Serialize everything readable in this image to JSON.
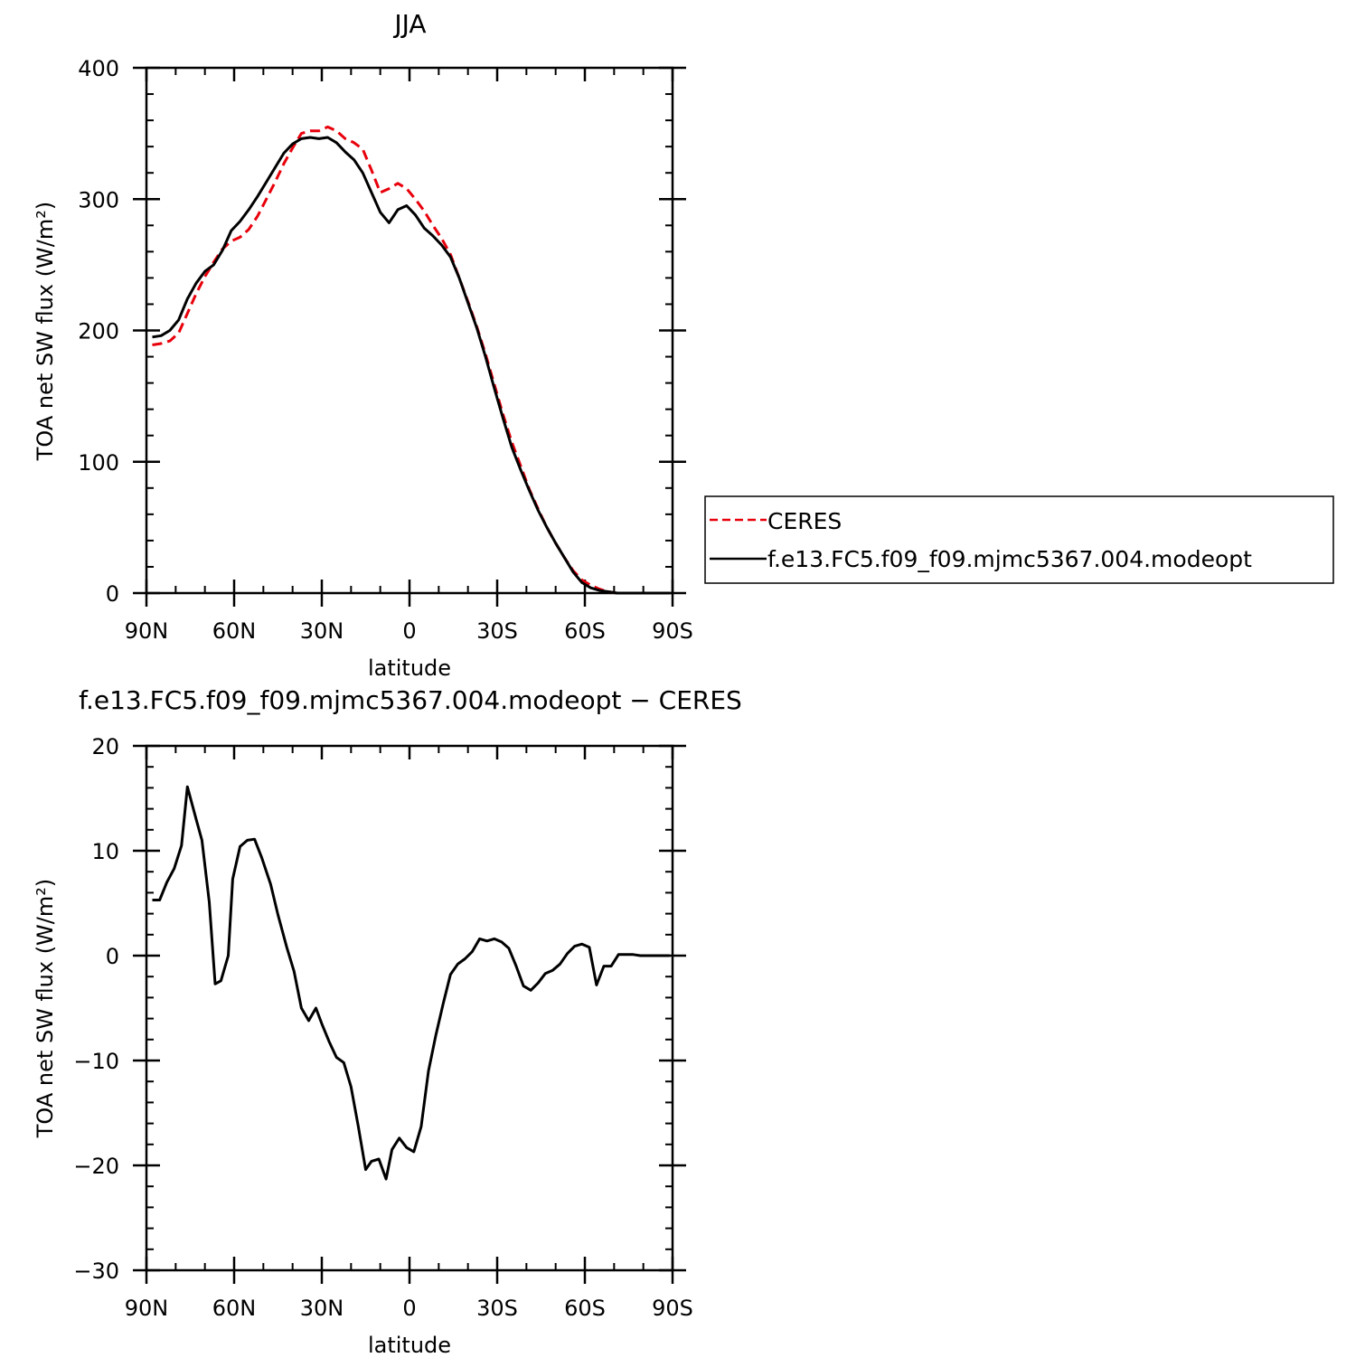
{
  "chart_data": [
    {
      "type": "line",
      "title": "JJA",
      "xlabel": "latitude",
      "ylabel": "TOA net SW flux (W/m²)",
      "xlim": [
        90,
        -90
      ],
      "ylim": [
        0,
        400
      ],
      "xticks": [
        {
          "value": 90,
          "label": "90N"
        },
        {
          "value": 60,
          "label": "60N"
        },
        {
          "value": 30,
          "label": "30N"
        },
        {
          "value": 0,
          "label": "0"
        },
        {
          "value": -30,
          "label": "30S"
        },
        {
          "value": -60,
          "label": "60S"
        },
        {
          "value": -90,
          "label": "90S"
        }
      ],
      "yticks": [
        {
          "value": 0,
          "label": "0"
        },
        {
          "value": 100,
          "label": "100"
        },
        {
          "value": 200,
          "label": "200"
        },
        {
          "value": 300,
          "label": "300"
        },
        {
          "value": 400,
          "label": "400"
        }
      ],
      "legend": {
        "position": "right"
      },
      "series": [
        {
          "name": "CERES",
          "color": "#e8000b",
          "dash": "dashed",
          "x": [
            88,
            85,
            82,
            79,
            76,
            73,
            70,
            67,
            64,
            61,
            58,
            55,
            52,
            49,
            46,
            43,
            40,
            37,
            34,
            31,
            28,
            25,
            22,
            19,
            16,
            13,
            10,
            7,
            4,
            1,
            -2,
            -5,
            -8,
            -11,
            -14,
            -17,
            -20,
            -23,
            -26,
            -29,
            -32,
            -35,
            -38,
            -41,
            -44,
            -47,
            -50,
            -53,
            -56,
            -59,
            -62,
            -65,
            -68,
            -71,
            -74,
            -77,
            -80,
            -83,
            -86,
            -89
          ],
          "values": [
            189,
            190,
            192,
            198,
            213,
            228,
            241,
            252,
            262,
            268,
            271,
            277,
            287,
            300,
            313,
            327,
            339,
            350,
            352,
            352,
            355,
            352,
            346,
            343,
            338,
            322,
            305,
            308,
            312,
            308,
            300,
            291,
            280,
            270,
            258,
            240,
            222,
            203,
            182,
            159,
            136,
            115,
            97,
            79,
            64,
            50,
            38,
            27,
            17,
            10,
            6,
            3,
            1,
            0,
            0,
            0,
            0,
            0,
            0,
            0
          ]
        },
        {
          "name": "f.e13.FC5.f09_f09.mjmc5367.004.modeopt",
          "color": "#000000",
          "dash": "solid",
          "x": [
            88,
            85,
            82,
            79,
            76,
            73,
            70,
            67,
            64,
            61,
            58,
            55,
            52,
            49,
            46,
            43,
            40,
            37,
            34,
            31,
            28,
            25,
            22,
            19,
            16,
            13,
            10,
            7,
            4,
            1,
            -2,
            -5,
            -8,
            -11,
            -14,
            -17,
            -20,
            -23,
            -26,
            -29,
            -32,
            -35,
            -38,
            -41,
            -44,
            -47,
            -50,
            -53,
            -56,
            -59,
            -62,
            -65,
            -68,
            -71,
            -74,
            -77,
            -80,
            -83,
            -86,
            -89
          ],
          "values": [
            195,
            196,
            200,
            208,
            224,
            236,
            245,
            250,
            261,
            276,
            283,
            292,
            302,
            313,
            324,
            335,
            342,
            346,
            347,
            346,
            347,
            343,
            336,
            330,
            320,
            305,
            290,
            282,
            292,
            295,
            288,
            278,
            272,
            265,
            256,
            240,
            221,
            202,
            180,
            156,
            133,
            111,
            94,
            78,
            63,
            50,
            38,
            27,
            16,
            8,
            4,
            2,
            1,
            0,
            0,
            0,
            0,
            0,
            0,
            0
          ]
        }
      ]
    },
    {
      "type": "line",
      "title": "f.e13.FC5.f09_f09.mjmc5367.004.modeopt − CERES",
      "xlabel": "latitude",
      "ylabel": "TOA net SW flux (W/m²)",
      "xlim": [
        90,
        -90
      ],
      "ylim": [
        -30,
        20
      ],
      "xticks": [
        {
          "value": 90,
          "label": "90N"
        },
        {
          "value": 60,
          "label": "60N"
        },
        {
          "value": 30,
          "label": "30N"
        },
        {
          "value": 0,
          "label": "0"
        },
        {
          "value": -30,
          "label": "30S"
        },
        {
          "value": -60,
          "label": "60S"
        },
        {
          "value": -90,
          "label": "90S"
        }
      ],
      "yticks": [
        {
          "value": -30,
          "label": "−30"
        },
        {
          "value": -20,
          "label": "−20"
        },
        {
          "value": -10,
          "label": "−10"
        },
        {
          "value": 0,
          "label": "0"
        },
        {
          "value": 10,
          "label": "10"
        },
        {
          "value": 20,
          "label": "20"
        }
      ],
      "series": [
        {
          "color": "#000000",
          "dash": "solid",
          "x": [
            88,
            85.5,
            83,
            80.5,
            78,
            76,
            73,
            71,
            68.5,
            66.5,
            64.5,
            62,
            60.5,
            58,
            55.5,
            53,
            50.5,
            47.5,
            45,
            42,
            39.5,
            37,
            34.5,
            32,
            30,
            27.5,
            25,
            22.5,
            20,
            17.5,
            15,
            13,
            10.5,
            8,
            6,
            3.5,
            1,
            -1.5,
            -4,
            -6.5,
            -9,
            -11.5,
            -14,
            -16.5,
            -19,
            -21.5,
            -24,
            -26.5,
            -29,
            -31.5,
            -34,
            -36.5,
            -39,
            -41.5,
            -44,
            -46.5,
            -49,
            -51.5,
            -54,
            -56.5,
            -59,
            -61.5,
            -64,
            -66.5,
            -69,
            -71.5,
            -74,
            -76.5,
            -79,
            -81.5,
            -84,
            -86.5,
            -89
          ],
          "values": [
            5.3,
            5.3,
            7,
            8.3,
            10.5,
            16.1,
            13,
            11,
            5.1,
            -2.7,
            -2.4,
            0,
            7.3,
            10.4,
            11,
            11.1,
            9.3,
            6.8,
            3.9,
            0.8,
            -1.5,
            -5,
            -6.2,
            -5,
            -6.5,
            -8.2,
            -9.7,
            -10.2,
            -12.5,
            -16.3,
            -20.4,
            -19.6,
            -19.4,
            -21.3,
            -18.5,
            -17.4,
            -18.3,
            -18.7,
            -16.3,
            -11,
            -7.6,
            -4.6,
            -1.8,
            -0.8,
            -0.3,
            0.4,
            1.6,
            1.4,
            1.6,
            1.3,
            0.7,
            -1,
            -2.9,
            -3.3,
            -2.6,
            -1.7,
            -1.4,
            -0.8,
            0.2,
            0.9,
            1.1,
            0.8,
            -2.8,
            -1,
            -1,
            0.1,
            0.1,
            0.1,
            0,
            0,
            0,
            0,
            0
          ]
        }
      ]
    }
  ]
}
